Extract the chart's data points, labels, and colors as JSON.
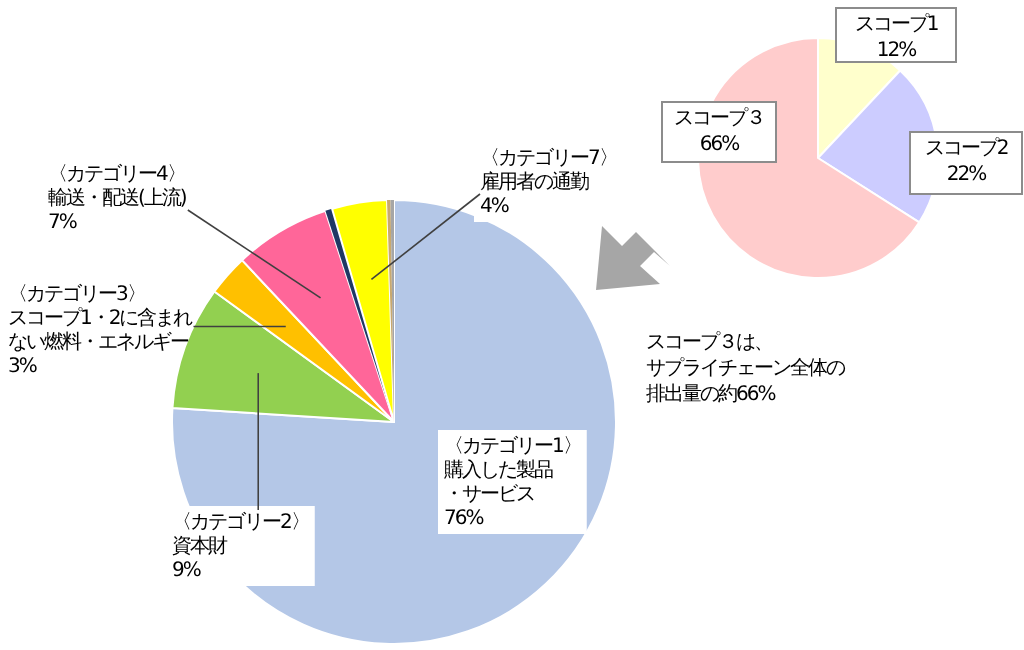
{
  "chart_data": [
    {
      "type": "pie",
      "categories": [
        "〈カテゴリー1〉購入した製品・サービス",
        "〈カテゴリー2〉資本財",
        "〈カテゴリー3〉スコープ1・2に含まれない燃料・エネルギー",
        "〈カテゴリー4〉輸送・配送(上流)",
        null,
        "〈カテゴリー7〉雇用者の通勤",
        null,
        null
      ],
      "values": [
        76,
        9,
        3,
        7,
        0.5,
        4,
        0.25,
        0.25
      ],
      "value_labels": [
        "76%",
        "9%",
        "3%",
        "7%",
        null,
        "4%",
        null,
        null
      ],
      "colors": [
        "#b4c7e7",
        "#92d050",
        "#ffc000",
        "#ff6699",
        "#1f3864",
        "#ffff00",
        "#c9a96e",
        "#a6a6a6"
      ]
    },
    {
      "type": "pie",
      "categories": [
        "スコープ1",
        "スコープ2",
        "スコープ３"
      ],
      "values": [
        12,
        22,
        66
      ],
      "value_labels": [
        "12%",
        "22%",
        "66%"
      ],
      "colors": [
        "#ffffcc",
        "#ccccff",
        "#ffcccc"
      ],
      "annotations": [
        "スコープ３は、サプライチェーン全体の排出量の約66%"
      ]
    }
  ]
}
